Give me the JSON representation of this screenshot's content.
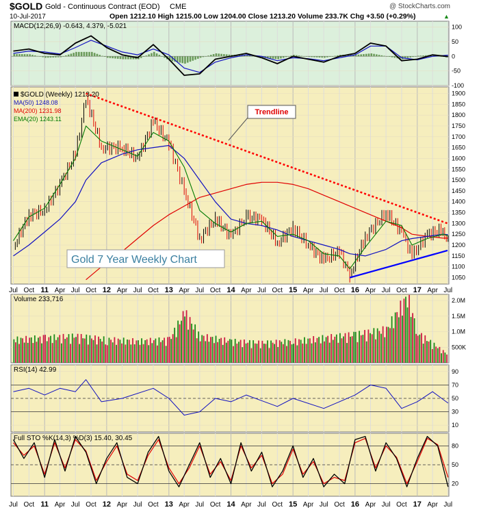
{
  "header": {
    "symbol": "$GOLD",
    "name": "Gold - Continuous Contract (EOD)",
    "exchange": "CME",
    "date": "10-Jul-2017",
    "watermark": "@ StockCharts.com",
    "quote": "Open 1212.10  High 1215.00  Low 1204.00  Close 1213.20  Volume 233.7K  Chg +3.50 (+0.29%)",
    "quote_arrow": "▲"
  },
  "colors": {
    "price_bg": "#f6eebd",
    "osc_bg": "#dcf0dc",
    "ma50": "#1010c0",
    "ma200": "#e00000",
    "ema20": "#007a00",
    "trend_up": "#0000ff",
    "trend_down": "#ff0000",
    "up_bar": "#1a8a1a",
    "down_bar": "#cc1a44"
  },
  "chart_data": [
    {
      "panel": "macd",
      "type": "line",
      "legend": "MACD(12,26,9) -0.643, 4.379, -5.021",
      "ylim": [
        -100,
        120
      ],
      "yticks": [
        "100",
        "50",
        "0",
        "-50",
        "-100"
      ],
      "x": [
        "2010-07",
        "2010-10",
        "2011-01",
        "2011-04",
        "2011-07",
        "2011-10",
        "2012-01",
        "2012-04",
        "2012-07",
        "2012-10",
        "2013-01",
        "2013-04",
        "2013-07",
        "2013-10",
        "2014-01",
        "2014-04",
        "2014-07",
        "2014-10",
        "2015-01",
        "2015-04",
        "2015-07",
        "2015-10",
        "2016-01",
        "2016-04",
        "2016-07",
        "2016-10",
        "2017-01",
        "2017-04",
        "2017-07"
      ],
      "series": [
        {
          "name": "MACD",
          "values": [
            18,
            25,
            10,
            5,
            45,
            70,
            30,
            5,
            -5,
            40,
            -10,
            -65,
            -60,
            -10,
            0,
            10,
            -5,
            -25,
            0,
            -10,
            -20,
            0,
            10,
            45,
            35,
            -15,
            -10,
            5,
            -1
          ]
        },
        {
          "name": "Signal",
          "values": [
            10,
            18,
            15,
            8,
            30,
            55,
            35,
            15,
            5,
            25,
            5,
            -40,
            -55,
            -20,
            -5,
            5,
            0,
            -15,
            -5,
            -8,
            -15,
            -5,
            5,
            35,
            35,
            -5,
            -12,
            0,
            4
          ]
        }
      ]
    },
    {
      "panel": "price",
      "type": "line",
      "title": "Gold 7 Year Weekly Chart",
      "legend": [
        "$GOLD (Weekly) 1213.20",
        "MA(50) 1248.08",
        "MA(200) 1231.98",
        "EMA(20) 1243.11"
      ],
      "annotation": "Trendline",
      "ylim": [
        1020,
        1930
      ],
      "yticks": [
        "1900",
        "1850",
        "1800",
        "1750",
        "1700",
        "1650",
        "1600",
        "1550",
        "1500",
        "1450",
        "1400",
        "1350",
        "1300",
        "1250",
        "1200",
        "1150",
        "1100",
        "1050"
      ],
      "x": [
        "2010-07",
        "2010-10",
        "2011-01",
        "2011-04",
        "2011-07",
        "2011-09",
        "2011-12",
        "2012-04",
        "2012-07",
        "2012-10",
        "2013-01",
        "2013-04",
        "2013-07",
        "2013-10",
        "2014-01",
        "2014-04",
        "2014-07",
        "2014-10",
        "2015-01",
        "2015-04",
        "2015-07",
        "2015-10",
        "2015-12",
        "2016-03",
        "2016-07",
        "2016-10",
        "2016-12",
        "2017-03",
        "2017-06",
        "2017-07"
      ],
      "series": [
        {
          "name": "$GOLD",
          "values": [
            1190,
            1340,
            1360,
            1480,
            1620,
            1880,
            1650,
            1650,
            1600,
            1770,
            1670,
            1450,
            1230,
            1320,
            1240,
            1330,
            1320,
            1210,
            1280,
            1200,
            1130,
            1170,
            1060,
            1240,
            1350,
            1260,
            1150,
            1250,
            1270,
            1213
          ]
        },
        {
          "name": "MA(50)",
          "values": [
            1150,
            1200,
            1260,
            1320,
            1400,
            1500,
            1580,
            1620,
            1640,
            1650,
            1660,
            1600,
            1500,
            1400,
            1320,
            1300,
            1290,
            1270,
            1240,
            1220,
            1200,
            1180,
            1160,
            1150,
            1180,
            1220,
            1230,
            1240,
            1250,
            1248
          ]
        },
        {
          "name": "MA(200)",
          "values": [
            null,
            null,
            null,
            null,
            null,
            1040,
            1100,
            1170,
            1230,
            1290,
            1340,
            1380,
            1420,
            1440,
            1460,
            1480,
            1490,
            1490,
            1480,
            1460,
            1430,
            1400,
            1380,
            1350,
            1310,
            1280,
            1250,
            1240,
            1232,
            1232
          ]
        },
        {
          "name": "EMA(20)",
          "values": [
            1220,
            1330,
            1370,
            1480,
            1600,
            1750,
            1680,
            1640,
            1610,
            1720,
            1680,
            1560,
            1360,
            1300,
            1260,
            1300,
            1310,
            1240,
            1250,
            1220,
            1160,
            1150,
            1090,
            1190,
            1310,
            1290,
            1200,
            1230,
            1250,
            1243
          ]
        }
      ],
      "trendlines": [
        {
          "from": [
            "2011-09",
            1900
          ],
          "to": [
            "2017-07",
            1300
          ],
          "style": "dotted"
        },
        {
          "from": [
            "2015-12",
            1050
          ],
          "to": [
            "2017-07",
            1175
          ],
          "style": "solid"
        }
      ]
    },
    {
      "panel": "volume",
      "type": "bar",
      "legend": "Volume 233,716",
      "ylim": [
        0,
        2200000
      ],
      "yticks": [
        "2.0M",
        "1.5M",
        "1.0M",
        "500K"
      ],
      "x": [
        "2010-07",
        "2011-01",
        "2011-07",
        "2012-01",
        "2012-07",
        "2013-01",
        "2013-04",
        "2013-07",
        "2014-01",
        "2014-07",
        "2015-01",
        "2015-07",
        "2016-01",
        "2016-07",
        "2016-11",
        "2017-01",
        "2017-07"
      ],
      "values": [
        700000,
        750000,
        800000,
        700000,
        650000,
        700000,
        1500000,
        800000,
        650000,
        600000,
        650000,
        750000,
        850000,
        1000000,
        2000000,
        900000,
        233716
      ]
    },
    {
      "panel": "rsi",
      "type": "line",
      "legend": "RSI(14) 42.99",
      "ylim": [
        0,
        100
      ],
      "yticks": [
        "90",
        "70",
        "50",
        "30",
        "10"
      ],
      "levels": [
        70,
        30
      ],
      "x": [
        "2010-07",
        "2010-10",
        "2011-01",
        "2011-04",
        "2011-07",
        "2011-09",
        "2011-12",
        "2012-04",
        "2012-10",
        "2013-01",
        "2013-04",
        "2013-07",
        "2013-10",
        "2014-01",
        "2014-04",
        "2014-10",
        "2015-01",
        "2015-07",
        "2015-10",
        "2016-01",
        "2016-04",
        "2016-07",
        "2016-10",
        "2017-01",
        "2017-04",
        "2017-07"
      ],
      "values": [
        60,
        65,
        55,
        65,
        60,
        78,
        45,
        50,
        65,
        50,
        25,
        30,
        50,
        45,
        55,
        38,
        50,
        35,
        45,
        55,
        70,
        65,
        35,
        45,
        60,
        43
      ]
    },
    {
      "panel": "sto",
      "type": "line",
      "legend": "Full STO %K(14,3) %D(3) 15.40, 30.45",
      "ylim": [
        0,
        100
      ],
      "yticks": [
        "80",
        "50",
        "20"
      ],
      "levels": [
        80,
        20
      ],
      "x": [
        "2010-07",
        "2010-09",
        "2010-11",
        "2011-01",
        "2011-03",
        "2011-05",
        "2011-07",
        "2011-09",
        "2011-11",
        "2012-01",
        "2012-03",
        "2012-05",
        "2012-07",
        "2012-09",
        "2012-11",
        "2013-01",
        "2013-03",
        "2013-05",
        "2013-07",
        "2013-09",
        "2013-11",
        "2014-01",
        "2014-03",
        "2014-05",
        "2014-07",
        "2014-09",
        "2014-11",
        "2015-01",
        "2015-03",
        "2015-05",
        "2015-07",
        "2015-09",
        "2015-11",
        "2016-01",
        "2016-03",
        "2016-05",
        "2016-07",
        "2016-09",
        "2016-11",
        "2017-01",
        "2017-03",
        "2017-05",
        "2017-07"
      ],
      "series": [
        {
          "name": "%K",
          "values": [
            90,
            60,
            85,
            30,
            90,
            40,
            95,
            70,
            20,
            60,
            85,
            30,
            20,
            70,
            95,
            40,
            15,
            50,
            85,
            30,
            60,
            20,
            85,
            40,
            70,
            15,
            40,
            80,
            30,
            60,
            15,
            35,
            20,
            90,
            95,
            40,
            85,
            60,
            15,
            60,
            95,
            80,
            15
          ]
        },
        {
          "name": "%D",
          "values": [
            85,
            65,
            80,
            35,
            85,
            45,
            90,
            72,
            25,
            55,
            80,
            35,
            25,
            65,
            90,
            45,
            20,
            45,
            80,
            35,
            55,
            25,
            80,
            45,
            65,
            20,
            35,
            75,
            35,
            55,
            20,
            30,
            25,
            85,
            92,
            45,
            80,
            62,
            20,
            55,
            92,
            82,
            30
          ]
        }
      ]
    }
  ],
  "axis": {
    "x_labels": [
      {
        "t": "Jul",
        "d": "2010-07"
      },
      {
        "t": "Oct",
        "d": "2010-10"
      },
      {
        "t": "11",
        "d": "2011-01",
        "bold": true
      },
      {
        "t": "Apr",
        "d": "2011-04"
      },
      {
        "t": "Jul",
        "d": "2011-07"
      },
      {
        "t": "Oct",
        "d": "2011-10"
      },
      {
        "t": "12",
        "d": "2012-01",
        "bold": true
      },
      {
        "t": "Apr",
        "d": "2012-04"
      },
      {
        "t": "Jul",
        "d": "2012-07"
      },
      {
        "t": "Oct",
        "d": "2012-10"
      },
      {
        "t": "13",
        "d": "2013-01",
        "bold": true
      },
      {
        "t": "Apr",
        "d": "2013-04"
      },
      {
        "t": "Jul",
        "d": "2013-07"
      },
      {
        "t": "Oct",
        "d": "2013-10"
      },
      {
        "t": "14",
        "d": "2014-01",
        "bold": true
      },
      {
        "t": "Apr",
        "d": "2014-04"
      },
      {
        "t": "Jul",
        "d": "2014-07"
      },
      {
        "t": "Oct",
        "d": "2014-10"
      },
      {
        "t": "15",
        "d": "2015-01",
        "bold": true
      },
      {
        "t": "Apr",
        "d": "2015-04"
      },
      {
        "t": "Jul",
        "d": "2015-07"
      },
      {
        "t": "Oct",
        "d": "2015-10"
      },
      {
        "t": "16",
        "d": "2016-01",
        "bold": true
      },
      {
        "t": "Apr",
        "d": "2016-04"
      },
      {
        "t": "Jul",
        "d": "2016-07"
      },
      {
        "t": "Oct",
        "d": "2016-10"
      },
      {
        "t": "17",
        "d": "2017-01",
        "bold": true
      },
      {
        "t": "Apr",
        "d": "2017-04"
      },
      {
        "t": "Jul",
        "d": "2017-07"
      }
    ]
  }
}
